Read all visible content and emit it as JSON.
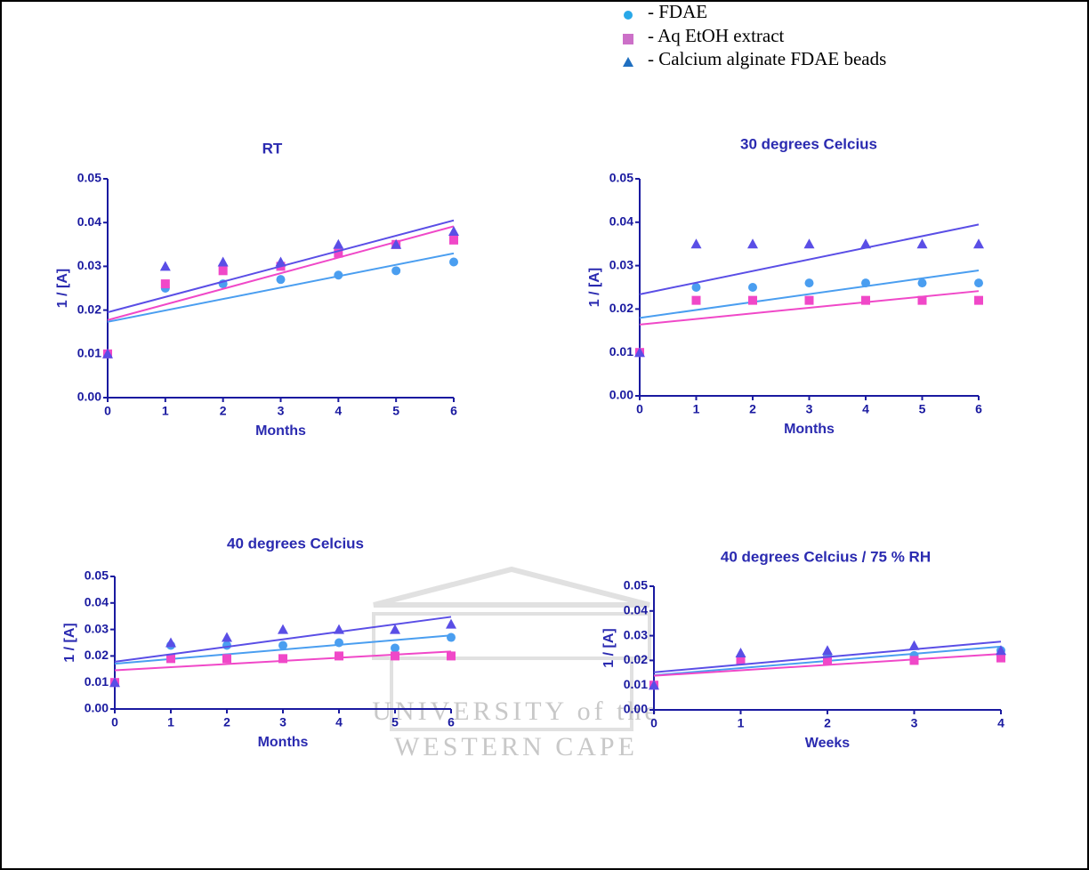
{
  "legend": [
    {
      "name": "- FDAE",
      "color": "#29a8e8",
      "marker": "circle"
    },
    {
      "name": "- Aq EtOH extract",
      "color": "#cc70c8",
      "marker": "square"
    },
    {
      "name": "- Calcium alginate FDAE beads",
      "color": "#1f6fc0",
      "marker": "triangle"
    }
  ],
  "watermark": [
    "UNIVERSITY of the",
    "WESTERN CAPE"
  ],
  "chart_data": [
    {
      "type": "scatter",
      "title": "RT",
      "x_label": "Months",
      "y_label": "1 / [A]",
      "fit": true,
      "x": [
        0,
        1,
        2,
        3,
        4,
        5,
        6
      ],
      "xlim": [
        0,
        6
      ],
      "xticks": [
        0,
        1,
        2,
        3,
        4,
        5,
        6
      ],
      "ylim": [
        0,
        0.05
      ],
      "yticks": [
        {
          "value": 0,
          "label": "0.00"
        },
        {
          "value": 0.01,
          "label": "0.01"
        },
        {
          "value": 0.02,
          "label": "0.02"
        },
        {
          "value": 0.03,
          "label": "0.03"
        },
        {
          "value": 0.04,
          "label": "0.04"
        },
        {
          "value": 0.05,
          "label": "0.05"
        }
      ],
      "series": [
        {
          "marker": "circle",
          "color": "#4a9ef0",
          "values": [
            0.01,
            0.025,
            0.026,
            0.027,
            0.028,
            0.029,
            0.031
          ]
        },
        {
          "marker": "square",
          "color": "#f048c8",
          "values": [
            0.01,
            0.026,
            0.029,
            0.03,
            0.033,
            0.035,
            0.036
          ]
        },
        {
          "marker": "triangle",
          "color": "#5a4ee6",
          "values": [
            0.01,
            0.03,
            0.031,
            0.031,
            0.035,
            0.035,
            0.038
          ]
        }
      ]
    },
    {
      "type": "scatter",
      "title": "30 degrees Celcius",
      "x_label": "Months",
      "y_label": "1 / [A]",
      "fit": true,
      "x": [
        0,
        1,
        2,
        3,
        4,
        5,
        6
      ],
      "xlim": [
        0,
        6
      ],
      "xticks": [
        0,
        1,
        2,
        3,
        4,
        5,
        6
      ],
      "ylim": [
        0,
        0.05
      ],
      "yticks": [
        {
          "value": 0,
          "label": "0.00"
        },
        {
          "value": 0.01,
          "label": "0.01"
        },
        {
          "value": 0.02,
          "label": "0.02"
        },
        {
          "value": 0.03,
          "label": "0.03"
        },
        {
          "value": 0.04,
          "label": "0.04"
        },
        {
          "value": 0.05,
          "label": "0.05"
        }
      ],
      "series": [
        {
          "marker": "circle",
          "color": "#4a9ef0",
          "values": [
            0.01,
            0.025,
            0.025,
            0.026,
            0.026,
            0.026,
            0.026
          ]
        },
        {
          "marker": "square",
          "color": "#f048c8",
          "values": [
            0.01,
            0.022,
            0.022,
            0.022,
            0.022,
            0.022,
            0.022
          ]
        },
        {
          "marker": "triangle",
          "color": "#5a4ee6",
          "values": [
            0.01,
            0.035,
            0.035,
            0.035,
            0.035,
            0.035,
            0.035
          ]
        }
      ]
    },
    {
      "type": "scatter",
      "title": "40 degrees Celcius",
      "x_label": "Months",
      "y_label": "1 / [A]",
      "fit": true,
      "x": [
        0,
        1,
        2,
        3,
        4,
        5,
        6
      ],
      "xlim": [
        0,
        6
      ],
      "xticks": [
        0,
        1,
        2,
        3,
        4,
        5,
        6
      ],
      "ylim": [
        0,
        0.05
      ],
      "yticks": [
        {
          "value": 0,
          "label": "0.00"
        },
        {
          "value": 0.01,
          "label": "0.01"
        },
        {
          "value": 0.02,
          "label": "0.02"
        },
        {
          "value": 0.03,
          "label": "0.03"
        },
        {
          "value": 0.04,
          "label": "0.04"
        },
        {
          "value": 0.05,
          "label": "0.05"
        }
      ],
      "series": [
        {
          "marker": "circle",
          "color": "#4a9ef0",
          "values": [
            0.01,
            0.024,
            0.024,
            0.024,
            0.025,
            0.023,
            0.027
          ]
        },
        {
          "marker": "square",
          "color": "#f048c8",
          "values": [
            0.01,
            0.019,
            0.019,
            0.019,
            0.02,
            0.02,
            0.02
          ]
        },
        {
          "marker": "triangle",
          "color": "#5a4ee6",
          "values": [
            0.01,
            0.025,
            0.027,
            0.03,
            0.03,
            0.03,
            0.032
          ]
        }
      ]
    },
    {
      "type": "scatter",
      "title": "40 degrees Celcius / 75 % RH",
      "x_label": "Weeks",
      "y_label": "1 / [A]",
      "fit": true,
      "x": [
        0,
        1,
        2,
        3,
        4
      ],
      "xlim": [
        0,
        4
      ],
      "xticks": [
        0,
        1,
        2,
        3,
        4
      ],
      "ylim": [
        0,
        0.05
      ],
      "yticks": [
        {
          "value": 0,
          "label": "0.00"
        },
        {
          "value": 0.01,
          "label": "0.01"
        },
        {
          "value": 0.02,
          "label": "0.02"
        },
        {
          "value": 0.03,
          "label": "0.03"
        },
        {
          "value": 0.04,
          "label": "0.04"
        },
        {
          "value": 0.05,
          "label": "0.05"
        }
      ],
      "series": [
        {
          "marker": "circle",
          "color": "#4a9ef0",
          "values": [
            0.01,
            0.021,
            0.022,
            0.022,
            0.024
          ]
        },
        {
          "marker": "square",
          "color": "#f048c8",
          "values": [
            0.01,
            0.02,
            0.02,
            0.02,
            0.021
          ]
        },
        {
          "marker": "triangle",
          "color": "#5a4ee6",
          "values": [
            0.01,
            0.023,
            0.024,
            0.026,
            0.024
          ]
        }
      ]
    }
  ]
}
